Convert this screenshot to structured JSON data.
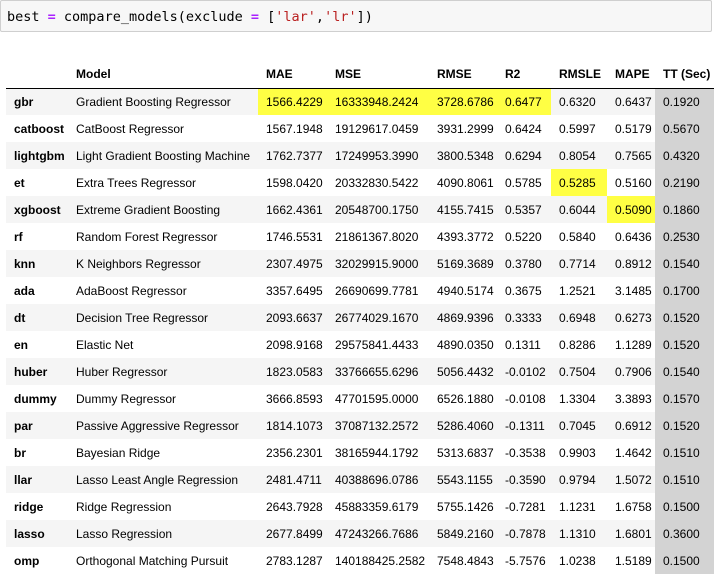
{
  "code_cell": {
    "tokens": [
      {
        "text": "best",
        "cls": "tok-var"
      },
      {
        "text": " ",
        "cls": "tok-pun"
      },
      {
        "text": "=",
        "cls": "tok-op"
      },
      {
        "text": " compare_models(exclude ",
        "cls": "tok-fn"
      },
      {
        "text": "=",
        "cls": "tok-op"
      },
      {
        "text": " [",
        "cls": "tok-pun"
      },
      {
        "text": "'lar'",
        "cls": "tok-str"
      },
      {
        "text": ",",
        "cls": "tok-pun"
      },
      {
        "text": "'lr'",
        "cls": "tok-str"
      },
      {
        "text": "])",
        "cls": "tok-pun"
      }
    ]
  },
  "colors": {
    "highlight_best": "#ffff44",
    "tt_column": "#d3d3d3",
    "row_stripe": "#f5f5f5"
  },
  "table": {
    "headers": [
      "",
      "Model",
      "MAE",
      "MSE",
      "RMSE",
      "R2",
      "RMSLE",
      "MAPE",
      "TT (Sec)"
    ],
    "rows": [
      {
        "key": "gbr",
        "model": "Gradient Boosting Regressor",
        "values": [
          "1566.4229",
          "16333948.2424",
          "3728.6786",
          "0.6477",
          "0.6320",
          "0.6437",
          "0.1920"
        ],
        "highlight": [
          0,
          1,
          2,
          3
        ]
      },
      {
        "key": "catboost",
        "model": "CatBoost Regressor",
        "values": [
          "1567.1948",
          "19129617.0459",
          "3931.2999",
          "0.6424",
          "0.5997",
          "0.5179",
          "0.5670"
        ],
        "highlight": []
      },
      {
        "key": "lightgbm",
        "model": "Light Gradient Boosting Machine",
        "values": [
          "1762.7377",
          "17249953.3990",
          "3800.5348",
          "0.6294",
          "0.8054",
          "0.7565",
          "0.4320"
        ],
        "highlight": []
      },
      {
        "key": "et",
        "model": "Extra Trees Regressor",
        "values": [
          "1598.0420",
          "20332830.5422",
          "4090.8061",
          "0.5785",
          "0.5285",
          "0.5160",
          "0.2190"
        ],
        "highlight": [
          4
        ]
      },
      {
        "key": "xgboost",
        "model": "Extreme Gradient Boosting",
        "values": [
          "1662.4361",
          "20548700.1750",
          "4155.7415",
          "0.5357",
          "0.6044",
          "0.5090",
          "0.1860"
        ],
        "highlight": [
          5
        ]
      },
      {
        "key": "rf",
        "model": "Random Forest Regressor",
        "values": [
          "1746.5531",
          "21861367.8020",
          "4393.3772",
          "0.5220",
          "0.5840",
          "0.6436",
          "0.2530"
        ],
        "highlight": []
      },
      {
        "key": "knn",
        "model": "K Neighbors Regressor",
        "values": [
          "2307.4975",
          "32029915.9000",
          "5169.3689",
          "0.3780",
          "0.7714",
          "0.8912",
          "0.1540"
        ],
        "highlight": []
      },
      {
        "key": "ada",
        "model": "AdaBoost Regressor",
        "values": [
          "3357.6495",
          "26690699.7781",
          "4940.5174",
          "0.3675",
          "1.2521",
          "3.1485",
          "0.1700"
        ],
        "highlight": []
      },
      {
        "key": "dt",
        "model": "Decision Tree Regressor",
        "values": [
          "2093.6637",
          "26774029.1670",
          "4869.9396",
          "0.3333",
          "0.6948",
          "0.6273",
          "0.1520"
        ],
        "highlight": []
      },
      {
        "key": "en",
        "model": "Elastic Net",
        "values": [
          "2098.9168",
          "29575841.4433",
          "4890.0350",
          "0.1311",
          "0.8286",
          "1.1289",
          "0.1520"
        ],
        "highlight": []
      },
      {
        "key": "huber",
        "model": "Huber Regressor",
        "values": [
          "1823.0583",
          "33766655.6296",
          "5056.4432",
          "-0.0102",
          "0.7504",
          "0.7906",
          "0.1540"
        ],
        "highlight": []
      },
      {
        "key": "dummy",
        "model": "Dummy Regressor",
        "values": [
          "3666.8593",
          "47701595.0000",
          "6526.1880",
          "-0.0108",
          "1.3304",
          "3.3893",
          "0.1570"
        ],
        "highlight": []
      },
      {
        "key": "par",
        "model": "Passive Aggressive Regressor",
        "values": [
          "1814.1073",
          "37087132.2572",
          "5286.4060",
          "-0.1311",
          "0.7045",
          "0.6912",
          "0.1520"
        ],
        "highlight": []
      },
      {
        "key": "br",
        "model": "Bayesian Ridge",
        "values": [
          "2356.2301",
          "38165944.1792",
          "5313.6837",
          "-0.3538",
          "0.9903",
          "1.4642",
          "0.1510"
        ],
        "highlight": []
      },
      {
        "key": "llar",
        "model": "Lasso Least Angle Regression",
        "values": [
          "2481.4711",
          "40388696.0786",
          "5543.1155",
          "-0.3590",
          "0.9794",
          "1.5072",
          "0.1510"
        ],
        "highlight": []
      },
      {
        "key": "ridge",
        "model": "Ridge Regression",
        "values": [
          "2643.7928",
          "45883359.6179",
          "5755.1426",
          "-0.7281",
          "1.1231",
          "1.6758",
          "0.1500"
        ],
        "highlight": []
      },
      {
        "key": "lasso",
        "model": "Lasso Regression",
        "values": [
          "2677.8499",
          "47243266.7686",
          "5849.2160",
          "-0.7878",
          "1.1310",
          "1.6801",
          "0.3600"
        ],
        "highlight": []
      },
      {
        "key": "omp",
        "model": "Orthogonal Matching Pursuit",
        "values": [
          "2783.1287",
          "140188425.2582",
          "7548.4843",
          "-5.7576",
          "1.0238",
          "1.5189",
          "0.1500"
        ],
        "highlight": []
      }
    ]
  }
}
